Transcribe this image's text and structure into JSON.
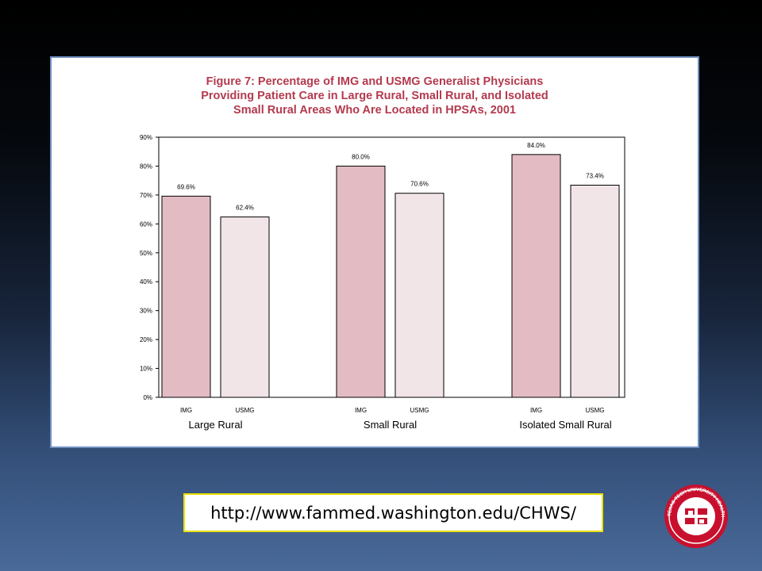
{
  "chart_data": {
    "type": "bar",
    "title_lines": [
      "Figure 7:  Percentage of IMG and USMG Generalist Physicians",
      "Providing Patient Care in Large Rural, Small Rural, and Isolated",
      "Small Rural Areas Who Are Located in HPSAs, 2001"
    ],
    "groups": [
      {
        "label": "Large Rural",
        "bars": [
          {
            "category": "IMG",
            "value": 69.6,
            "label": "69.6%"
          },
          {
            "category": "USMG",
            "value": 62.4,
            "label": "62.4%"
          }
        ]
      },
      {
        "label": "Small Rural",
        "bars": [
          {
            "category": "IMG",
            "value": 80.0,
            "label": "80.0%"
          },
          {
            "category": "USMG",
            "value": 70.6,
            "label": "70.6%"
          }
        ]
      },
      {
        "label": "Isolated Small Rural",
        "bars": [
          {
            "category": "IMG",
            "value": 84.0,
            "label": "84.0%"
          },
          {
            "category": "USMG",
            "value": 73.4,
            "label": "73.4%"
          }
        ]
      }
    ],
    "y_ticks": [
      "0%",
      "10%",
      "20%",
      "30%",
      "40%",
      "50%",
      "60%",
      "70%",
      "80%",
      "90%"
    ],
    "ylim": [
      0,
      90
    ],
    "grid": false,
    "colors": {
      "IMG": "#e3bcc3",
      "USMG": "#f1e5e8"
    }
  },
  "url_text": "http://www.fammed.washington.edu/CHWS/",
  "logo": {
    "icon": "university-seal-icon",
    "text": "TEXAS TECH UNIVERSITY HEALTH SCIENCES CENTER",
    "colors": {
      "red": "#c8102e",
      "white": "#ffffff"
    }
  }
}
